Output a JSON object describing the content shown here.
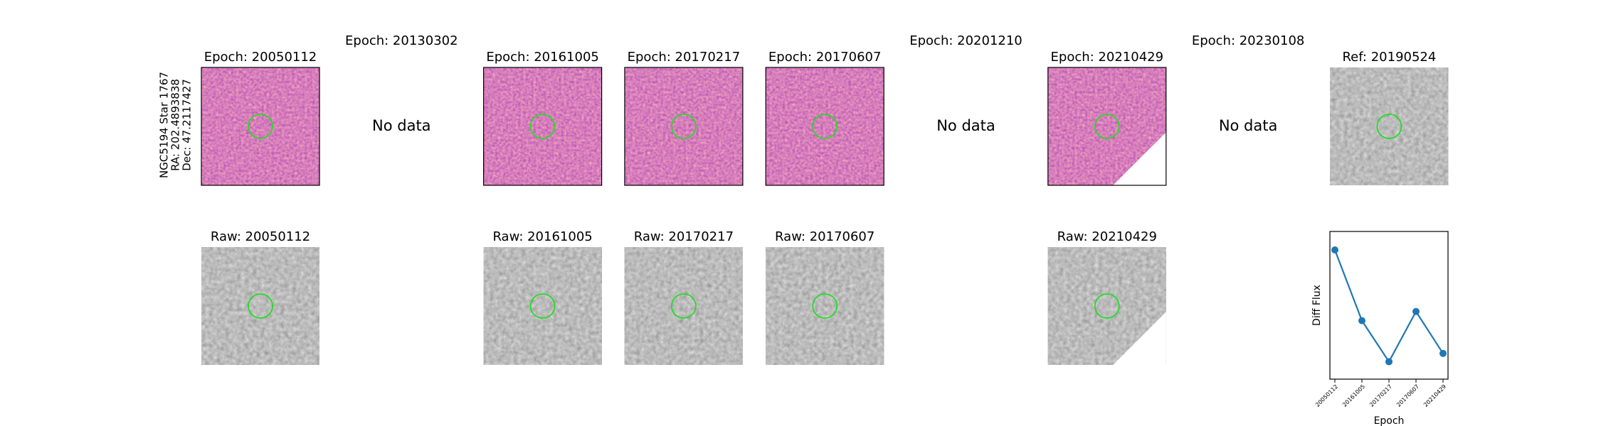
{
  "star": {
    "name": "NGC5194 Star 1767",
    "ra": "RA: 202.4893838",
    "dec": "Dec: 47.2117427"
  },
  "epochs": [
    {
      "title": "Epoch: 20050112",
      "raw": "Raw: 20050112"
    },
    {
      "title": "Epoch: 20130302",
      "message": "No data"
    },
    {
      "title": "Epoch: 20161005",
      "raw": "Raw: 20161005"
    },
    {
      "title": "Epoch: 20170217",
      "raw": "Raw: 20170217"
    },
    {
      "title": "Epoch: 20170607",
      "raw": "Raw: 20170607"
    },
    {
      "title": "Epoch: 20201210",
      "message": "No data"
    },
    {
      "title": "Epoch: 20210429",
      "raw": "Raw: 20210429"
    },
    {
      "title": "Epoch: 20230108",
      "message": "No data"
    }
  ],
  "reference": {
    "title": "Ref: 20190524"
  },
  "chart_data": {
    "type": "line",
    "x_label": "Epoch",
    "y_label": "Diff Flux",
    "categories": [
      "20050112",
      "20161005",
      "20170217",
      "20170607",
      "20210429"
    ],
    "values": [
      0.875,
      0.396,
      0.118,
      0.458,
      0.174
    ],
    "ylim": [
      0,
      1
    ],
    "color": "#1f77b4"
  }
}
